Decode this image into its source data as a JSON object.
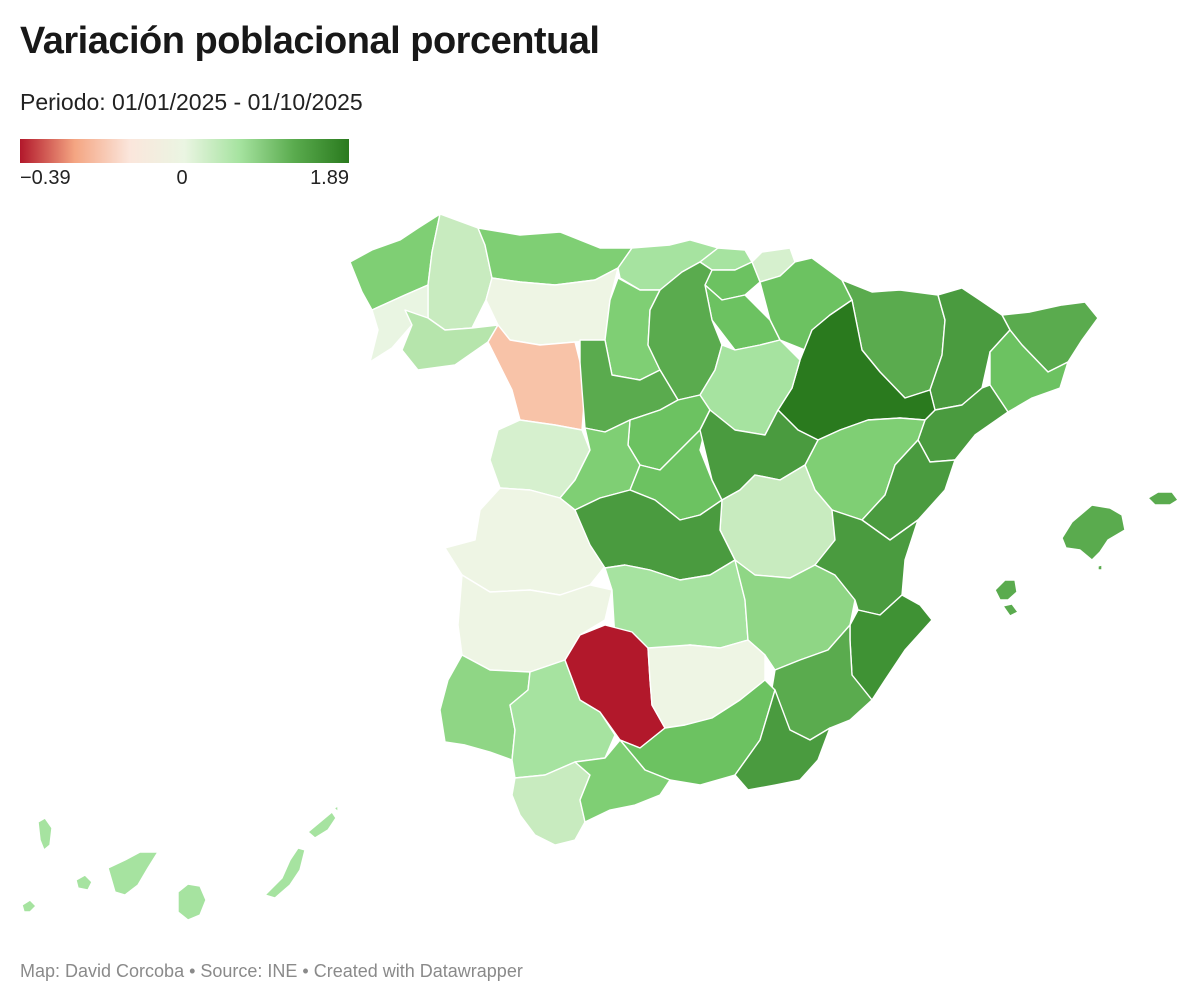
{
  "header": {
    "title": "Variación poblacional porcentual",
    "subtitle": "Periodo: 01/01/2025 - 01/10/2025"
  },
  "legend": {
    "min_label": "−0.39",
    "mid_label": "0",
    "max_label": "1.89",
    "stops": [
      "#b2182b",
      "#f4a582",
      "#fbe6dc",
      "#eaf5e2",
      "#a6e3a0",
      "#5aab4e",
      "#2a7a1e"
    ]
  },
  "map": {
    "regions": [
      {
        "name": "galicia-a-coruna",
        "color": "#7fcf74"
      },
      {
        "name": "galicia-lugo",
        "color": "#c8ebbf"
      },
      {
        "name": "galicia-pontevedra",
        "color": "#e9f5e2"
      },
      {
        "name": "galicia-ourense",
        "color": "#b6e5ac"
      },
      {
        "name": "asturias",
        "color": "#7fcf74"
      },
      {
        "name": "cantabria",
        "color": "#a6e3a0"
      },
      {
        "name": "vizcaya",
        "color": "#a6e3a0"
      },
      {
        "name": "guipuzcoa",
        "color": "#d6f0ce"
      },
      {
        "name": "alava",
        "color": "#6cc261"
      },
      {
        "name": "navarra",
        "color": "#6cc261"
      },
      {
        "name": "la-rioja",
        "color": "#6cc261"
      },
      {
        "name": "huesca",
        "color": "#5aab4e"
      },
      {
        "name": "girona",
        "color": "#5aab4e"
      },
      {
        "name": "lleida",
        "color": "#4a9b3f"
      },
      {
        "name": "barcelona",
        "color": "#6cc261"
      },
      {
        "name": "tarragona",
        "color": "#4a9b3f"
      },
      {
        "name": "zaragoza",
        "color": "#2a7a1e"
      },
      {
        "name": "teruel",
        "color": "#7fcf74"
      },
      {
        "name": "castellon",
        "color": "#4a9b3f"
      },
      {
        "name": "leon",
        "color": "#eef5e4"
      },
      {
        "name": "zamora",
        "color": "#f8c3a8"
      },
      {
        "name": "palencia",
        "color": "#7fcf74"
      },
      {
        "name": "burgos",
        "color": "#5aab4e"
      },
      {
        "name": "soria",
        "color": "#a6e3a0"
      },
      {
        "name": "valladolid",
        "color": "#5aab4e"
      },
      {
        "name": "segovia",
        "color": "#6cc261"
      },
      {
        "name": "salamanca",
        "color": "#d6f0ce"
      },
      {
        "name": "avila",
        "color": "#7fcf74"
      },
      {
        "name": "madrid",
        "color": "#6cc261"
      },
      {
        "name": "guadalajara",
        "color": "#4a9b3f"
      },
      {
        "name": "cuenca",
        "color": "#c8ebbf"
      },
      {
        "name": "caceres",
        "color": "#eef5e4"
      },
      {
        "name": "badajoz",
        "color": "#eef5e4"
      },
      {
        "name": "toledo",
        "color": "#4a9b3f"
      },
      {
        "name": "ciudad-real",
        "color": "#a6e3a0"
      },
      {
        "name": "albacete",
        "color": "#8fd685"
      },
      {
        "name": "valencia",
        "color": "#4a9b3f"
      },
      {
        "name": "alicante",
        "color": "#3f9234"
      },
      {
        "name": "murcia",
        "color": "#5aab4e"
      },
      {
        "name": "huelva",
        "color": "#8fd685"
      },
      {
        "name": "sevilla",
        "color": "#a6e3a0"
      },
      {
        "name": "cordoba",
        "color": "#b2182b"
      },
      {
        "name": "jaen",
        "color": "#eef5e4"
      },
      {
        "name": "granada",
        "color": "#6cc261"
      },
      {
        "name": "almeria",
        "color": "#4a9b3f"
      },
      {
        "name": "cadiz",
        "color": "#c8ebbf"
      },
      {
        "name": "malaga",
        "color": "#7fcf74"
      },
      {
        "name": "baleares",
        "color": "#5aab4e"
      },
      {
        "name": "canarias",
        "color": "#a6e3a0"
      }
    ]
  },
  "footer": {
    "credits": "Map: David Corcoba • Source: INE • Created with Datawrapper"
  }
}
